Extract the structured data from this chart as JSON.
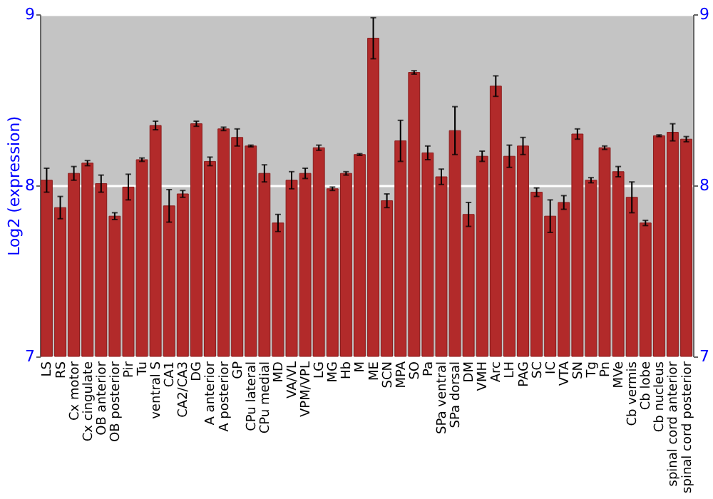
{
  "chart_data": {
    "type": "bar",
    "ylabel": "Log2 (expression)",
    "categories": [
      "LS",
      "RS",
      "Cx motor",
      "Cx cingulate",
      "OB anterior",
      "OB posterior",
      "Pir",
      "Tu",
      "ventral S",
      "CA1",
      "CA2/CA3",
      "DG",
      "A anterior",
      "A posterior",
      "GP",
      "CPu lateral",
      "CPu medial",
      "MD",
      "VA/VL",
      "VPM/VPL",
      "LG",
      "MG",
      "Hb",
      "M",
      "ME",
      "SCN",
      "MPA",
      "SO",
      "Pa",
      "SPa ventral",
      "SPa dorsal",
      "DM",
      "VMH",
      "Arc",
      "LH",
      "PAG",
      "SC",
      "IC",
      "VTA",
      "SN",
      "Tg",
      "Pn",
      "MVe",
      "Cb vermis",
      "Cb lobe",
      "Cb nucleus",
      "spinal cord anterior",
      "spinal cord posterior"
    ],
    "values": [
      8.03,
      7.87,
      8.07,
      8.13,
      8.01,
      7.82,
      7.99,
      8.15,
      8.35,
      7.88,
      7.95,
      8.36,
      8.14,
      8.33,
      8.28,
      8.23,
      8.07,
      7.78,
      8.03,
      8.07,
      8.22,
      7.98,
      8.07,
      8.18,
      8.86,
      7.91,
      8.26,
      8.66,
      8.19,
      8.05,
      8.32,
      7.83,
      8.17,
      8.58,
      8.17,
      8.23,
      7.96,
      7.82,
      7.9,
      8.3,
      8.03,
      8.22,
      8.08,
      7.93,
      7.78,
      8.29,
      8.31,
      8.27
    ],
    "errors": [
      0.07,
      0.065,
      0.04,
      0.015,
      0.05,
      0.02,
      0.075,
      0.01,
      0.025,
      0.095,
      0.02,
      0.015,
      0.025,
      0.01,
      0.05,
      0.005,
      0.05,
      0.05,
      0.05,
      0.03,
      0.015,
      0.01,
      0.01,
      0.005,
      0.12,
      0.04,
      0.12,
      0.01,
      0.04,
      0.045,
      0.14,
      0.07,
      0.03,
      0.06,
      0.065,
      0.05,
      0.025,
      0.095,
      0.04,
      0.03,
      0.015,
      0.01,
      0.03,
      0.09,
      0.015,
      0.005,
      0.05,
      0.015
    ],
    "color": "#b22a2a",
    "ylim": [
      7,
      9
    ],
    "yticks": [
      7,
      8,
      9
    ],
    "y2lim": [
      7,
      9
    ],
    "y2ticks": [
      7,
      8,
      9
    ],
    "grid": "y"
  }
}
